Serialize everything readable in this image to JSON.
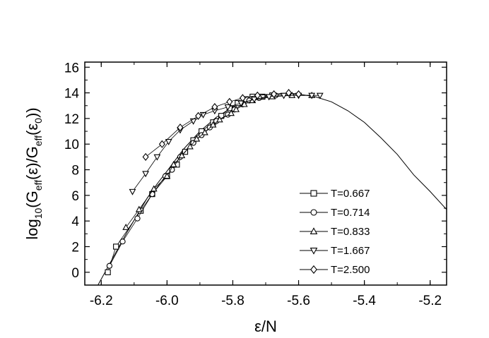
{
  "chart_data": {
    "type": "scatter",
    "title": "",
    "xlabel": "ε/N",
    "ylabel": "log10(Geff(ε)/Geff(ε0))",
    "xlim": [
      -6.25,
      -5.15
    ],
    "ylim": [
      -1,
      16.4
    ],
    "x_ticks": [
      -6.2,
      -6.0,
      -5.8,
      -5.6,
      -5.4,
      -5.2
    ],
    "x_tick_labels": [
      "-6.2",
      "-6.0",
      "-5.8",
      "-5.6",
      "-5.4",
      "-5.2"
    ],
    "y_ticks": [
      0,
      2,
      4,
      6,
      8,
      10,
      12,
      14,
      16
    ],
    "y_tick_labels": [
      "0",
      "2",
      "4",
      "6",
      "8",
      "10",
      "12",
      "14",
      "16"
    ],
    "grid": false,
    "legend_position": "lower-right",
    "fit_curve": {
      "x": [
        -6.21,
        -6.18,
        -6.15,
        -6.12,
        -6.09,
        -6.06,
        -6.03,
        -6.0,
        -5.95,
        -5.9,
        -5.85,
        -5.8,
        -5.75,
        -5.7,
        -5.65,
        -5.6,
        -5.55,
        -5.5,
        -5.45,
        -5.4,
        -5.35,
        -5.3,
        -5.25,
        -5.2,
        -5.15
      ],
      "y": [
        -1.0,
        0.4,
        1.8,
        3.2,
        4.5,
        5.8,
        6.9,
        7.9,
        9.6,
        11.0,
        12.1,
        12.9,
        13.5,
        13.8,
        13.9,
        13.9,
        13.7,
        13.3,
        12.6,
        11.7,
        10.5,
        9.2,
        7.6,
        6.3,
        4.9
      ]
    },
    "series": [
      {
        "name": "T=0.667",
        "marker": "square",
        "x": [
          -6.18,
          -6.155,
          -6.08,
          -6.045,
          -6.0,
          -5.97,
          -5.945,
          -5.92,
          -5.895,
          -5.86,
          -5.835,
          -5.81,
          -5.785,
          -5.76,
          -5.74,
          -5.71,
          -5.68
        ],
        "y": [
          0.0,
          2.0,
          4.8,
          6.1,
          7.5,
          8.4,
          9.4,
          10.3,
          11.0,
          11.7,
          12.2,
          12.8,
          13.2,
          13.5,
          13.7,
          13.7,
          13.8
        ]
      },
      {
        "name": "T=0.714",
        "marker": "circle",
        "x": [
          -6.175,
          -6.135,
          -6.09,
          -6.045,
          -6.005,
          -5.985,
          -5.96,
          -5.92,
          -5.895,
          -5.87,
          -5.85,
          -5.815,
          -5.795,
          -5.77,
          -5.75,
          -5.72,
          -5.67
        ],
        "y": [
          0.5,
          2.4,
          4.2,
          6.1,
          7.5,
          8.0,
          9.0,
          10.1,
          10.7,
          11.3,
          11.8,
          12.3,
          12.7,
          13.1,
          13.4,
          13.6,
          13.8
        ]
      },
      {
        "name": "T=0.833",
        "marker": "triangle-up",
        "x": [
          -6.125,
          -6.085,
          -6.04,
          -6.0,
          -5.98,
          -5.955,
          -5.93,
          -5.91,
          -5.885,
          -5.86,
          -5.84,
          -5.805,
          -5.79,
          -5.765,
          -5.74,
          -5.68,
          -5.62,
          -5.56
        ],
        "y": [
          3.5,
          4.9,
          6.5,
          7.5,
          8.4,
          9.1,
          9.8,
          10.4,
          10.9,
          11.5,
          11.9,
          12.4,
          12.7,
          13.1,
          13.4,
          13.7,
          13.8,
          13.8
        ]
      },
      {
        "name": "T=1.667",
        "marker": "triangle-down",
        "x": [
          -6.105,
          -6.065,
          -6.03,
          -5.995,
          -5.96,
          -5.92,
          -5.89,
          -5.855,
          -5.815,
          -5.775,
          -5.735,
          -5.69,
          -5.645,
          -5.6,
          -5.56,
          -5.535
        ],
        "y": [
          6.3,
          7.7,
          9.0,
          10.2,
          11.1,
          11.8,
          12.3,
          12.6,
          12.9,
          13.2,
          13.5,
          13.7,
          13.8,
          13.8,
          13.8,
          13.8
        ]
      },
      {
        "name": "T=2.500",
        "marker": "diamond",
        "x": [
          -6.065,
          -6.015,
          -5.96,
          -5.905,
          -5.855,
          -5.81,
          -5.77,
          -5.725,
          -5.675,
          -5.63,
          -5.6
        ],
        "y": [
          9.0,
          10.0,
          11.3,
          12.2,
          12.9,
          13.3,
          13.6,
          13.8,
          13.9,
          14.0,
          13.9
        ]
      }
    ]
  }
}
